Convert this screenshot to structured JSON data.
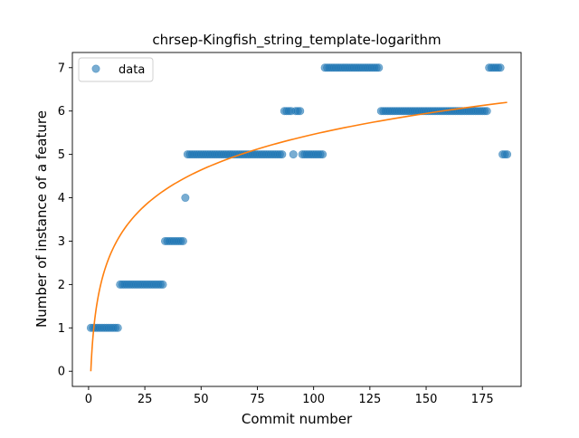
{
  "chart_data": {
    "type": "scatter",
    "title": "chrsep-Kingfish_string_template-logarithm",
    "xlabel": "Commit number",
    "ylabel": "Number of instance of a feature",
    "xlim": [
      -7.2,
      192.2
    ],
    "ylim": [
      -0.35,
      7.35
    ],
    "x_ticks": [
      0,
      25,
      50,
      75,
      100,
      125,
      150,
      175
    ],
    "y_ticks": [
      0,
      1,
      2,
      3,
      4,
      5,
      6,
      7
    ],
    "grid": false,
    "legend": {
      "location": "upper-left",
      "entries": [
        "data"
      ]
    },
    "colors": {
      "data": "#1f77b4",
      "fit": "#ff7f0e"
    },
    "series": [
      {
        "name": "data",
        "kind": "scatter",
        "segments": [
          {
            "x_from": 1,
            "x_to": 13,
            "y": 1
          },
          {
            "x_from": 14,
            "x_to": 33,
            "y": 2
          },
          {
            "x_from": 34,
            "x_to": 42,
            "y": 3
          },
          {
            "x_from": 43,
            "x_to": 43,
            "y": 4
          },
          {
            "x_from": 44,
            "x_to": 86,
            "y": 5
          },
          {
            "x_from": 87,
            "x_to": 90,
            "y": 6
          },
          {
            "x_from": 91,
            "x_to": 91,
            "y": 5
          },
          {
            "x_from": 92,
            "x_to": 94,
            "y": 6
          },
          {
            "x_from": 95,
            "x_to": 104,
            "y": 5
          },
          {
            "x_from": 105,
            "x_to": 129,
            "y": 7
          },
          {
            "x_from": 130,
            "x_to": 177,
            "y": 6
          },
          {
            "x_from": 178,
            "x_to": 183,
            "y": 7
          },
          {
            "x_from": 184,
            "x_to": 186,
            "y": 5
          }
        ]
      },
      {
        "kind": "line",
        "function": "logarithmic",
        "x_range": [
          1,
          186
        ],
        "y_start": 0,
        "y_end": 6.2
      }
    ]
  }
}
